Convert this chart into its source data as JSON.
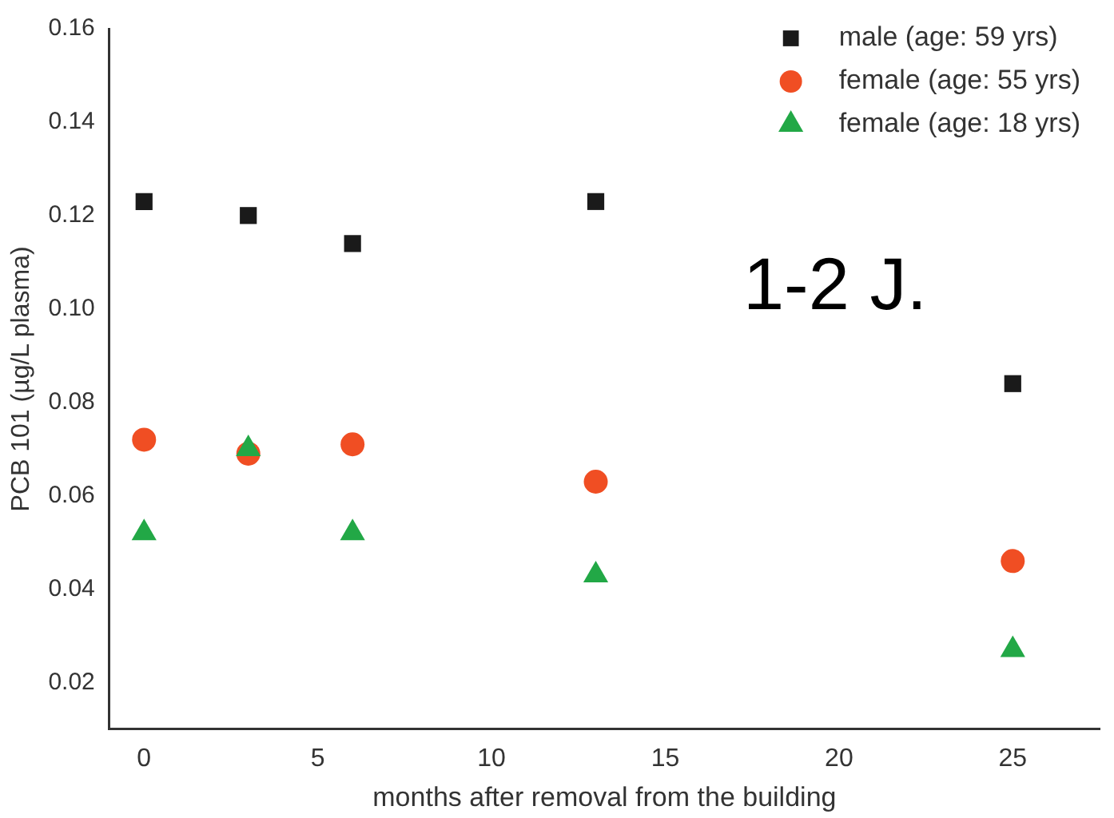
{
  "chart_data": {
    "type": "scatter",
    "xlabel": "months after removal from the building",
    "ylabel": "PCB 101 (µg/L plasma)",
    "x": [
      0,
      3,
      6,
      13,
      25
    ],
    "series": [
      {
        "name": "male (age: 59 yrs)",
        "color": "#1a1a1a",
        "marker": "square",
        "values": [
          0.123,
          0.12,
          0.114,
          0.123,
          0.084
        ]
      },
      {
        "name": "female (age: 55 yrs)",
        "color": "#f04e23",
        "marker": "circle",
        "values": [
          0.072,
          0.069,
          0.071,
          0.063,
          0.046
        ]
      },
      {
        "name": "female (age: 18 yrs)",
        "color": "#22a846",
        "marker": "triangle",
        "values": [
          0.052,
          0.07,
          0.052,
          0.043,
          0.027
        ]
      }
    ],
    "xlim": [
      -1,
      27.5
    ],
    "xticks": [
      0,
      5,
      10,
      15,
      20,
      25
    ],
    "ylim": [
      0.01,
      0.16
    ],
    "yticks": [
      0.02,
      0.04,
      0.06,
      0.08,
      {
        "value": 0.1,
        "label": "0.10"
      },
      0.12,
      0.14,
      0.16
    ],
    "grid": false,
    "legend": "top right",
    "annotations": [
      "1-2 J."
    ]
  }
}
